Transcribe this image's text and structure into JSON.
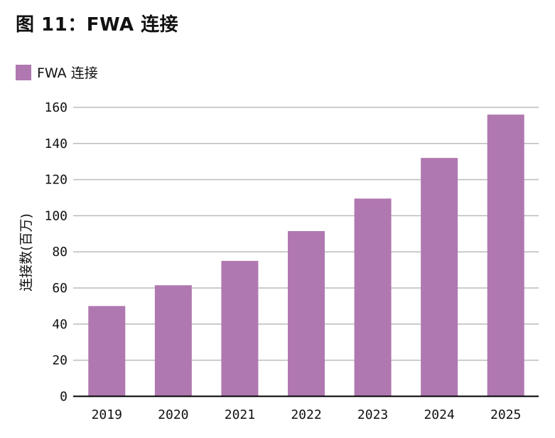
{
  "title": "图 11：FWA 连接",
  "chart_data": {
    "type": "bar",
    "title": "图 11：FWA 连接",
    "categories": [
      "2019",
      "2020",
      "2021",
      "2022",
      "2023",
      "2024",
      "2025"
    ],
    "series": [
      {
        "name": "FWA 连接",
        "color": "#b078b0",
        "values": [
          50,
          61.5,
          75,
          91.5,
          109.5,
          132,
          156
        ]
      }
    ],
    "xlabel": "",
    "ylabel": "连接数(百万)",
    "ylim": [
      0,
      160
    ],
    "yticks": [
      0,
      20,
      40,
      60,
      80,
      100,
      120,
      140,
      160
    ],
    "grid": true,
    "legend_position": "top-left"
  }
}
